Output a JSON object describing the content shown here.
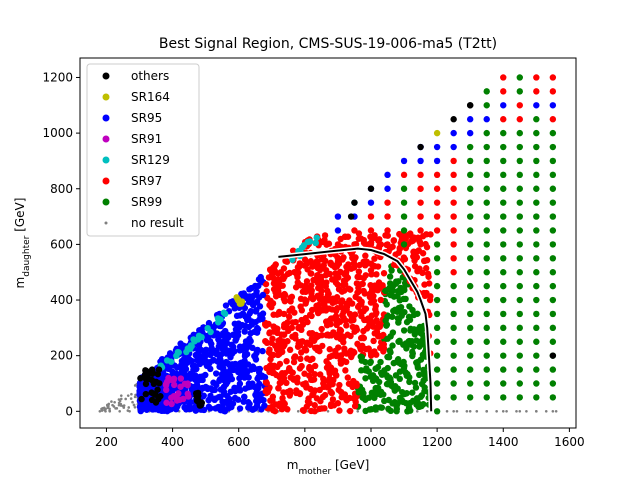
{
  "chart_data": {
    "type": "scatter",
    "title": "Best Signal Region, CMS-SUS-19-006-ma5 (T2tt)",
    "xlabel": {
      "base": "m",
      "sub": "mother",
      "unit": " [GeV]"
    },
    "ylabel": {
      "base": "m",
      "sub": "daughter",
      "unit": " [GeV]"
    },
    "xlim": [
      120,
      1620
    ],
    "ylim": [
      -60,
      1270
    ],
    "xticks": [
      200,
      400,
      600,
      800,
      1000,
      1200,
      1400,
      1600
    ],
    "yticks": [
      0,
      200,
      400,
      600,
      800,
      1000,
      1200
    ],
    "grid": false,
    "legend_position": "top-left",
    "colors": {
      "others": "#000000",
      "SR164": "#bfbf00",
      "SR95": "#0000ff",
      "SR91": "#bf00bf",
      "SR129": "#00bfbf",
      "SR97": "#ff0000",
      "SR99": "#008000",
      "no result": "#808080",
      "exclusion": "#000000"
    },
    "series": [
      {
        "name": "others",
        "marker": "dot"
      },
      {
        "name": "SR164",
        "marker": "dot"
      },
      {
        "name": "SR95",
        "marker": "dot"
      },
      {
        "name": "SR91",
        "marker": "dot"
      },
      {
        "name": "SR129",
        "marker": "dot"
      },
      {
        "name": "SR97",
        "marker": "dot"
      },
      {
        "name": "SR99",
        "marker": "dot"
      },
      {
        "name": "no result",
        "marker": "small"
      }
    ],
    "grid_points": {
      "x_start": 1200,
      "x_end": 1550,
      "x_step": 50,
      "y_start": 0,
      "y_step": 50,
      "columns": [
        {
          "x": 1200,
          "top": 1000,
          "SR97_from": 650,
          "SR99_from": 0,
          "top_label": "SR164"
        },
        {
          "x": 1250,
          "top": 1050,
          "SR97_from": 500,
          "SR99_from": 0,
          "top_label": "others"
        },
        {
          "x": 1300,
          "top": 1100,
          "SR97_from": 1000,
          "SR99_from": 0,
          "top_label": "others"
        },
        {
          "x": 1350,
          "top": 1150,
          "SR97_from": 1050,
          "SR99_from": 0
        },
        {
          "x": 1400,
          "top": 1200,
          "SR97_from": 1050,
          "SR99_from": 0
        },
        {
          "x": 1450,
          "top": 1200,
          "SR97_from": 1050,
          "SR99_from": 0
        },
        {
          "x": 1500,
          "top": 1200,
          "SR97_from": 1100,
          "SR99_from": 0
        },
        {
          "x": 1550,
          "top": 1200,
          "SR97_from": 1050,
          "SR99_from": 0
        }
      ]
    },
    "fine_regions": {
      "x_min": 300,
      "x_max": 1170,
      "zones": [
        {
          "label": "SR95",
          "x_from": 300,
          "x_to": 680
        },
        {
          "label": "SR97",
          "x_from": 680,
          "x_to": 1050
        },
        {
          "label": "SR99",
          "x_from": 1050,
          "x_to": 1170
        }
      ]
    },
    "exclusion_contour": [
      [
        720,
        555
      ],
      [
        800,
        565
      ],
      [
        880,
        575
      ],
      [
        960,
        585
      ],
      [
        1000,
        580
      ],
      [
        1040,
        565
      ],
      [
        1080,
        540
      ],
      [
        1100,
        510
      ],
      [
        1120,
        470
      ],
      [
        1140,
        430
      ],
      [
        1150,
        400
      ],
      [
        1165,
        350
      ],
      [
        1170,
        300
      ],
      [
        1175,
        200
      ],
      [
        1180,
        100
      ],
      [
        1182,
        0
      ]
    ],
    "others_points": [
      [
        1550,
        200
      ],
      [
        1000,
        800
      ],
      [
        950,
        750
      ],
      [
        1150,
        950
      ],
      [
        940,
        700
      ],
      [
        1300,
        1100
      ]
    ]
  }
}
